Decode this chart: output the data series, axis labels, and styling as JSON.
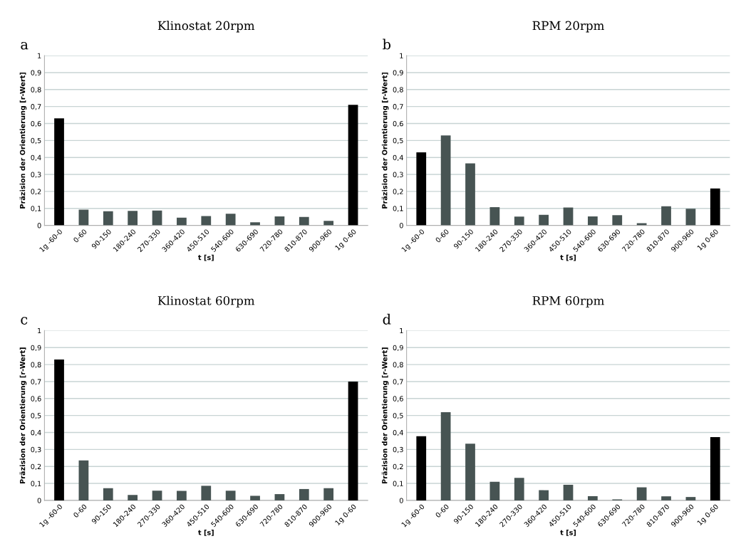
{
  "chart_data": [
    {
      "type": "bar",
      "title": "Klinostat 20rpm",
      "xlabel": "t [s]",
      "ylabel": "Präzision der Orientierung [r-Wert]",
      "annotations": [
        "a"
      ],
      "categories": [
        "1g -60-0",
        "0-60",
        "90-150",
        "180-240",
        "270-330",
        "360-420",
        "450-510",
        "540-600",
        "630-690",
        "720-780",
        "810-870",
        "900-960",
        "1g 0-60"
      ],
      "values": [
        0.63,
        0.093,
        0.083,
        0.085,
        0.087,
        0.045,
        0.055,
        0.068,
        0.018,
        0.053,
        0.05,
        0.026,
        0.71
      ],
      "colors": [
        "#000000",
        "#475453",
        "#475453",
        "#475453",
        "#475453",
        "#475453",
        "#475453",
        "#475453",
        "#475453",
        "#475453",
        "#475453",
        "#475453",
        "#000000"
      ],
      "ylim": [
        0,
        1
      ],
      "yticks": [
        0,
        {
          "value": 0.1,
          "label": "0,1"
        },
        {
          "value": 0.2,
          "label": "0,2"
        },
        {
          "value": 0.3,
          "label": "0,3"
        },
        {
          "value": 0.4,
          "label": "0,4"
        },
        {
          "value": 0.5,
          "label": "0,5"
        },
        {
          "value": 0.6,
          "label": "0,6"
        },
        {
          "value": 0.7,
          "label": "0,7"
        },
        {
          "value": 0.8,
          "label": "0,8"
        },
        {
          "value": 0.9,
          "label": "0,9"
        },
        1
      ],
      "grid": "y"
    },
    {
      "type": "bar",
      "title": "RPM 20rpm",
      "xlabel": "t [s]",
      "ylabel": "Präzision der Orientierung [r-Wert]",
      "annotations": [
        "b"
      ],
      "categories": [
        "1g -60-0",
        "0-60",
        "90-150",
        "180-240",
        "270-330",
        "360-420",
        "450-510",
        "540-600",
        "630-690",
        "720-780",
        "810-870",
        "900-960",
        "1g 0-60"
      ],
      "values": [
        0.43,
        0.53,
        0.365,
        0.107,
        0.052,
        0.062,
        0.105,
        0.053,
        0.06,
        0.013,
        0.113,
        0.098,
        0.217
      ],
      "colors": [
        "#000000",
        "#475453",
        "#475453",
        "#475453",
        "#475453",
        "#475453",
        "#475453",
        "#475453",
        "#475453",
        "#475453",
        "#475453",
        "#475453",
        "#000000"
      ],
      "ylim": [
        0,
        1
      ],
      "yticks": [
        0,
        {
          "value": 0.1,
          "label": "0,1"
        },
        {
          "value": 0.2,
          "label": "0,2"
        },
        {
          "value": 0.3,
          "label": "0,3"
        },
        {
          "value": 0.4,
          "label": "0,4"
        },
        {
          "value": 0.5,
          "label": "0,5"
        },
        {
          "value": 0.6,
          "label": "0,6"
        },
        {
          "value": 0.7,
          "label": "0,7"
        },
        {
          "value": 0.8,
          "label": "0,8"
        },
        {
          "value": 0.9,
          "label": "0,9"
        },
        1
      ],
      "grid": "y"
    },
    {
      "type": "bar",
      "title": "Klinostat 60rpm",
      "xlabel": "t [s]",
      "ylabel": "Präzision der Orientierung [r-Wert]",
      "annotations": [
        "c"
      ],
      "categories": [
        "1g -60-0",
        "0-60",
        "90-150",
        "180-240",
        "270-330",
        "360-420",
        "450-510",
        "540-600",
        "630-690",
        "720-780",
        "810-870",
        "900-960",
        "1g 0-60"
      ],
      "values": [
        0.83,
        0.235,
        0.072,
        0.032,
        0.057,
        0.056,
        0.086,
        0.057,
        0.027,
        0.037,
        0.067,
        0.072,
        0.7
      ],
      "colors": [
        "#000000",
        "#475453",
        "#475453",
        "#475453",
        "#475453",
        "#475453",
        "#475453",
        "#475453",
        "#475453",
        "#475453",
        "#475453",
        "#475453",
        "#000000"
      ],
      "ylim": [
        0,
        1
      ],
      "yticks": [
        0,
        {
          "value": 0.1,
          "label": "0,1"
        },
        {
          "value": 0.2,
          "label": "0,2"
        },
        {
          "value": 0.3,
          "label": "0,3"
        },
        {
          "value": 0.4,
          "label": "0,4"
        },
        {
          "value": 0.5,
          "label": "0,5"
        },
        {
          "value": 0.6,
          "label": "0,6"
        },
        {
          "value": 0.7,
          "label": "0,7"
        },
        {
          "value": 0.8,
          "label": "0,8"
        },
        {
          "value": 0.9,
          "label": "0,9"
        },
        1
      ],
      "grid": "y"
    },
    {
      "type": "bar",
      "title": "RPM 60rpm",
      "xlabel": "t [s]",
      "ylabel": "Präzision der Orientierung [r-Wert]",
      "annotations": [
        "d"
      ],
      "categories": [
        "1g -60-0",
        "0-60",
        "90-150",
        "180-240",
        "270-330",
        "360-420",
        "450-510",
        "540-600",
        "630-690",
        "720-780",
        "810-870",
        "900-960",
        "1g 0-60"
      ],
      "values": [
        0.378,
        0.52,
        0.334,
        0.11,
        0.133,
        0.06,
        0.092,
        0.025,
        0.006,
        0.077,
        0.024,
        0.02,
        0.373
      ],
      "colors": [
        "#000000",
        "#475453",
        "#475453",
        "#475453",
        "#475453",
        "#475453",
        "#475453",
        "#475453",
        "#475453",
        "#475453",
        "#475453",
        "#475453",
        "#000000"
      ],
      "ylim": [
        0,
        1
      ],
      "yticks": [
        0,
        {
          "value": 0.1,
          "label": "0,1"
        },
        {
          "value": 0.2,
          "label": "0,2"
        },
        {
          "value": 0.3,
          "label": "0,3"
        },
        {
          "value": 0.4,
          "label": "0,4"
        },
        {
          "value": 0.5,
          "label": "0,5"
        },
        {
          "value": 0.6,
          "label": "0,6"
        },
        {
          "value": 0.7,
          "label": "0,7"
        },
        {
          "value": 0.8,
          "label": "0,8"
        },
        {
          "value": 0.9,
          "label": "0,9"
        },
        1
      ],
      "grid": "y"
    }
  ]
}
